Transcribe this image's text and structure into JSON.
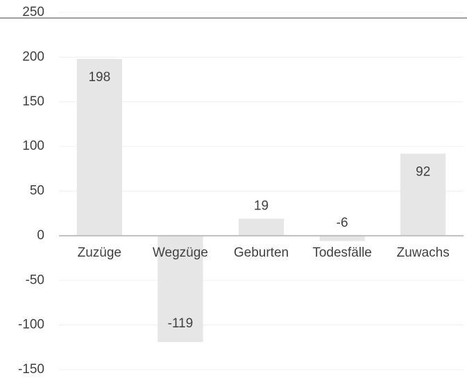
{
  "chart_data": {
    "type": "bar",
    "categories": [
      "Zuzüge",
      "Wegzüge",
      "Geburten",
      "Todesfälle",
      "Zuwachs"
    ],
    "values": [
      198,
      -119,
      19,
      -6,
      92
    ],
    "color": "#e6e6e6",
    "ylim": [
      -150,
      250
    ],
    "yticks": [
      -150,
      -100,
      -50,
      0,
      50,
      100,
      150,
      200,
      250
    ],
    "grid": true
  }
}
